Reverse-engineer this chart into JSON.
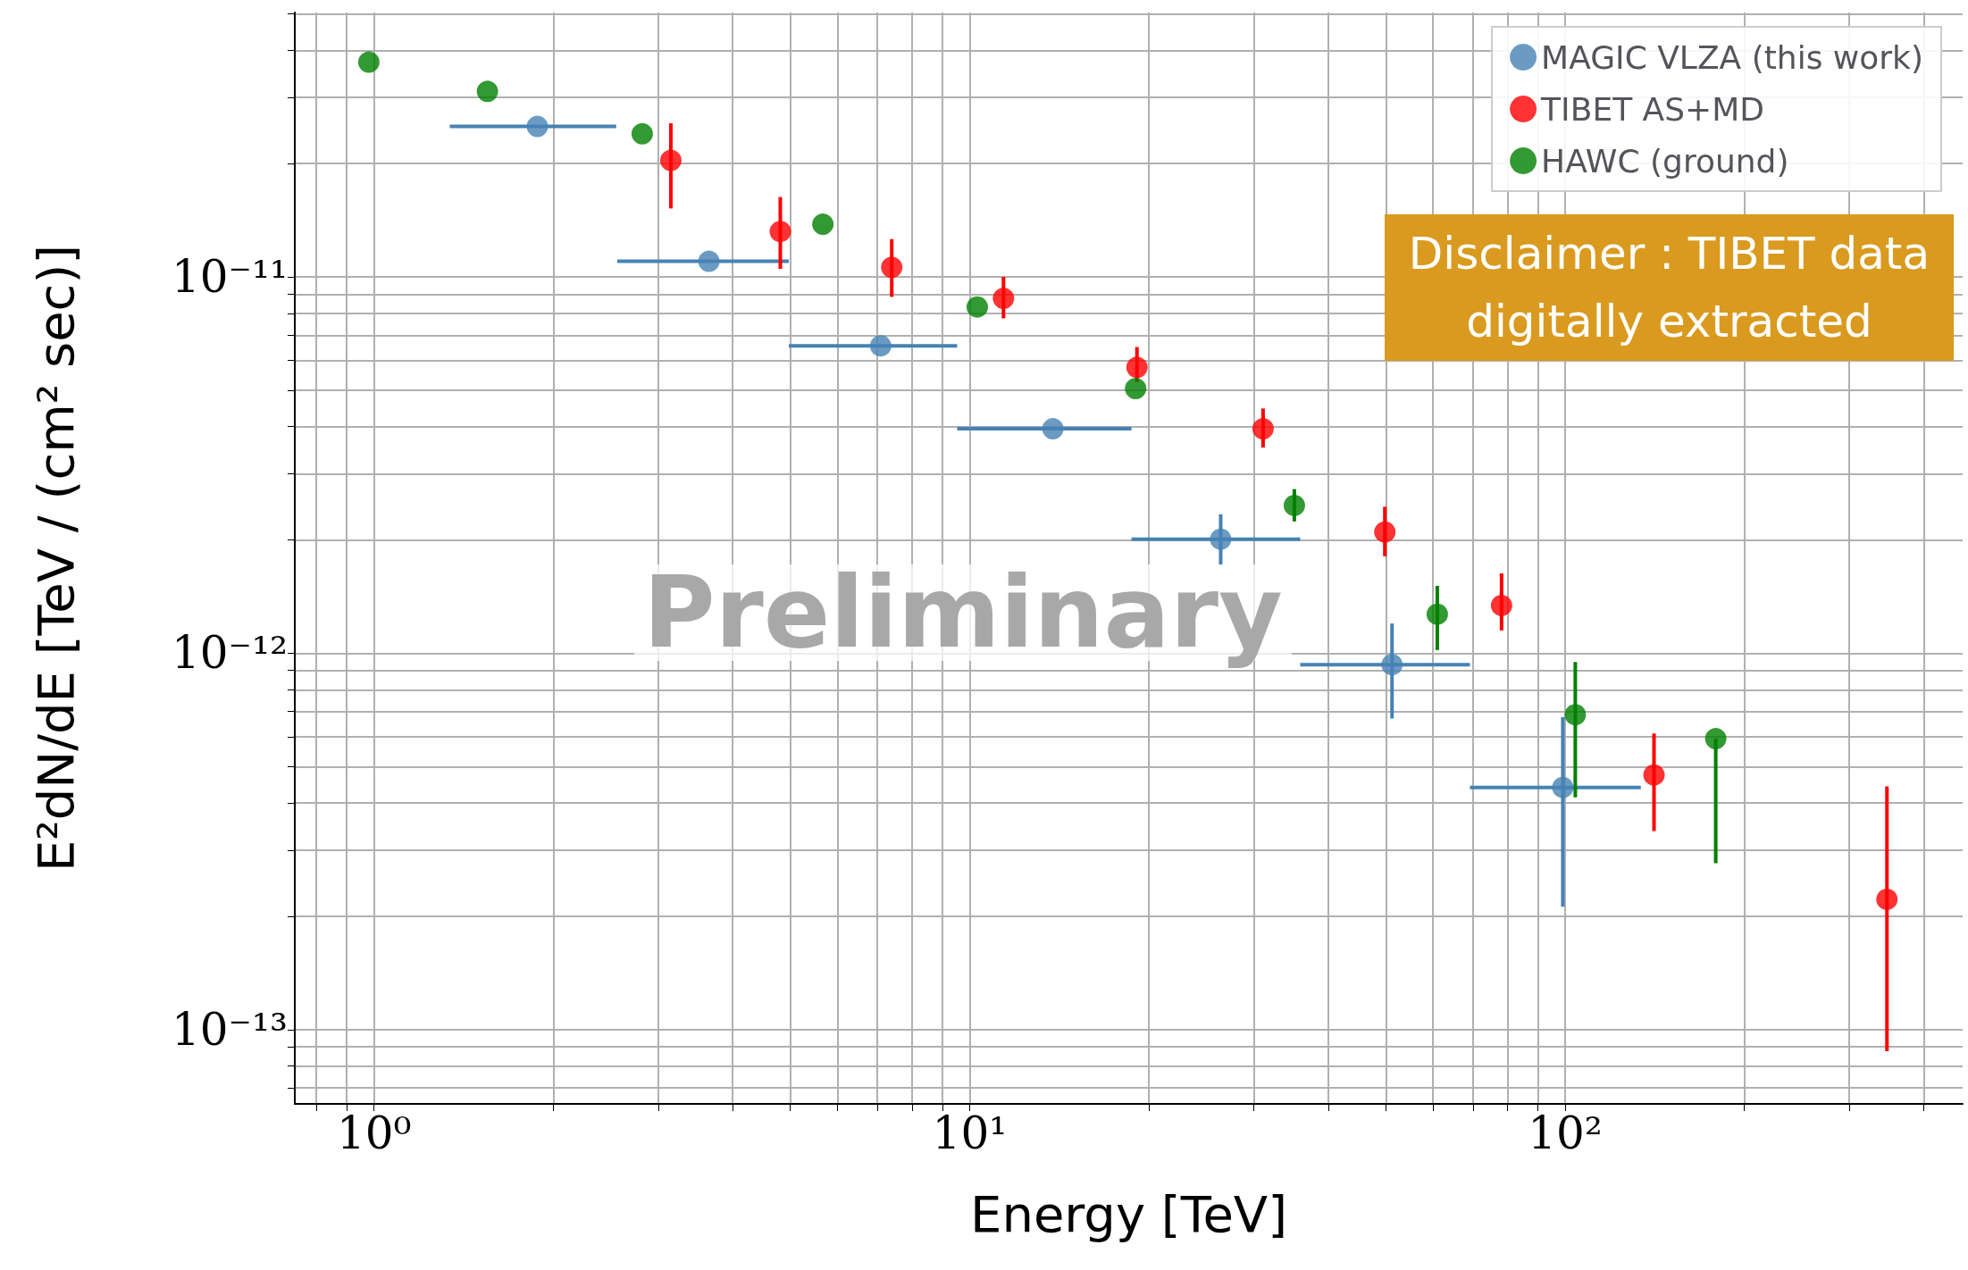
{
  "chart_data": {
    "type": "scatter",
    "xlabel": "Energy [TeV]",
    "ylabel": "E²dN/dE [TeV / (cm² sec)]",
    "log": "xy",
    "grid": true,
    "legend": "top right",
    "marker": "circle",
    "xlim": [
      0.736,
      465
    ],
    "ylim": [
      6.35e-14,
      5.04e-11
    ],
    "xticks": [
      {
        "value": 0.8,
        "label": null
      },
      {
        "value": 0.9,
        "label": null
      },
      {
        "value": 1,
        "label": "10⁰"
      },
      {
        "value": 2,
        "label": null
      },
      {
        "value": 3,
        "label": null
      },
      {
        "value": 4,
        "label": null
      },
      {
        "value": 5,
        "label": null
      },
      {
        "value": 6,
        "label": null
      },
      {
        "value": 7,
        "label": null
      },
      {
        "value": 8,
        "label": null
      },
      {
        "value": 9,
        "label": null
      },
      {
        "value": 10,
        "label": "10¹"
      },
      {
        "value": 20,
        "label": null
      },
      {
        "value": 30,
        "label": null
      },
      {
        "value": 40,
        "label": null
      },
      {
        "value": 50,
        "label": null
      },
      {
        "value": 60,
        "label": null
      },
      {
        "value": 70,
        "label": null
      },
      {
        "value": 80,
        "label": null
      },
      {
        "value": 90,
        "label": null
      },
      {
        "value": 100,
        "label": "10²"
      },
      {
        "value": 200,
        "label": null
      },
      {
        "value": 300,
        "label": null
      },
      {
        "value": 400,
        "label": null
      }
    ],
    "yticks": [
      {
        "value": 7e-14,
        "label": null
      },
      {
        "value": 8e-14,
        "label": null
      },
      {
        "value": 9e-14,
        "label": null
      },
      {
        "value": 1e-13,
        "label": "10⁻¹³"
      },
      {
        "value": 2e-13,
        "label": null
      },
      {
        "value": 3e-13,
        "label": null
      },
      {
        "value": 4e-13,
        "label": null
      },
      {
        "value": 5e-13,
        "label": null
      },
      {
        "value": 6e-13,
        "label": null
      },
      {
        "value": 7e-13,
        "label": null
      },
      {
        "value": 8e-13,
        "label": null
      },
      {
        "value": 9e-13,
        "label": null
      },
      {
        "value": 1e-12,
        "label": "10⁻¹²"
      },
      {
        "value": 2e-12,
        "label": null
      },
      {
        "value": 3e-12,
        "label": null
      },
      {
        "value": 4e-12,
        "label": null
      },
      {
        "value": 5e-12,
        "label": null
      },
      {
        "value": 6e-12,
        "label": null
      },
      {
        "value": 7e-12,
        "label": null
      },
      {
        "value": 8e-12,
        "label": null
      },
      {
        "value": 9e-12,
        "label": null
      },
      {
        "value": 1e-11,
        "label": "10⁻¹¹"
      },
      {
        "value": 2e-11,
        "label": null
      },
      {
        "value": 3e-11,
        "label": null
      },
      {
        "value": 4e-11,
        "label": null
      },
      {
        "value": 5e-11,
        "label": null
      }
    ],
    "annotations": [
      "Preliminary",
      "Disclaimer : TIBET data digitally extracted"
    ],
    "series": [
      {
        "name": "MAGIC VLZA (this work)",
        "color": "#4682b4",
        "x": [
          1.88,
          3.65,
          7.09,
          13.8,
          26.4,
          51.2,
          99.1
        ],
        "values": [
          2.51e-11,
          1.1e-11,
          6.56e-12,
          3.95e-12,
          2.01e-12,
          9.33e-13,
          4.4e-13
        ],
        "xerrors": [
          [
            1.34,
            2.55
          ],
          [
            2.56,
            4.97
          ],
          [
            4.97,
            9.53
          ],
          [
            9.53,
            18.7
          ],
          [
            18.7,
            35.9
          ],
          [
            35.9,
            69.2
          ],
          [
            69.2,
            134
          ]
        ],
        "errors": [
          null,
          null,
          null,
          null,
          [
            1.72e-12,
            2.34e-12
          ],
          [
            6.71e-13,
            1.2e-12
          ],
          [
            2.12e-13,
            6.76e-13
          ]
        ]
      },
      {
        "name": "TIBET AS+MD",
        "color": "#ff0000",
        "x": [
          3.15,
          4.81,
          7.4,
          11.4,
          19.1,
          31.1,
          49.8,
          78.2,
          141,
          347
        ],
        "values": [
          2.04e-11,
          1.32e-11,
          1.06e-11,
          8.77e-12,
          5.75e-12,
          3.95e-12,
          2.1e-12,
          1.34e-12,
          4.75e-13,
          2.22e-13
        ],
        "errors": [
          [
            1.52e-11,
            2.56e-11
          ],
          [
            1.05e-11,
            1.63e-11
          ],
          [
            8.85e-12,
            1.26e-11
          ],
          [
            7.76e-12,
            1e-11
          ],
          [
            5.25e-12,
            6.51e-12
          ],
          [
            3.52e-12,
            4.47e-12
          ],
          [
            1.81e-12,
            2.45e-12
          ],
          [
            1.15e-12,
            1.63e-12
          ],
          [
            3.37e-13,
            6.12e-13
          ],
          [
            8.77e-14,
            4.43e-13
          ]
        ]
      },
      {
        "name": "HAWC (ground)",
        "color": "#008000",
        "x": [
          0.98,
          1.55,
          2.82,
          5.67,
          10.3,
          19.0,
          35.1,
          61.0,
          104,
          179
        ],
        "values": [
          3.72e-11,
          3.11e-11,
          2.4e-11,
          1.38e-11,
          8.32e-12,
          5.05e-12,
          2.47e-12,
          1.27e-12,
          6.87e-13,
          5.93e-13
        ],
        "errors": [
          null,
          null,
          null,
          null,
          null,
          null,
          [
            2.24e-12,
            2.73e-12
          ],
          [
            1.02e-12,
            1.51e-12
          ],
          [
            4.14e-13,
            9.48e-13
          ],
          [
            2.77e-13,
            5.93e-13
          ]
        ]
      }
    ]
  }
}
